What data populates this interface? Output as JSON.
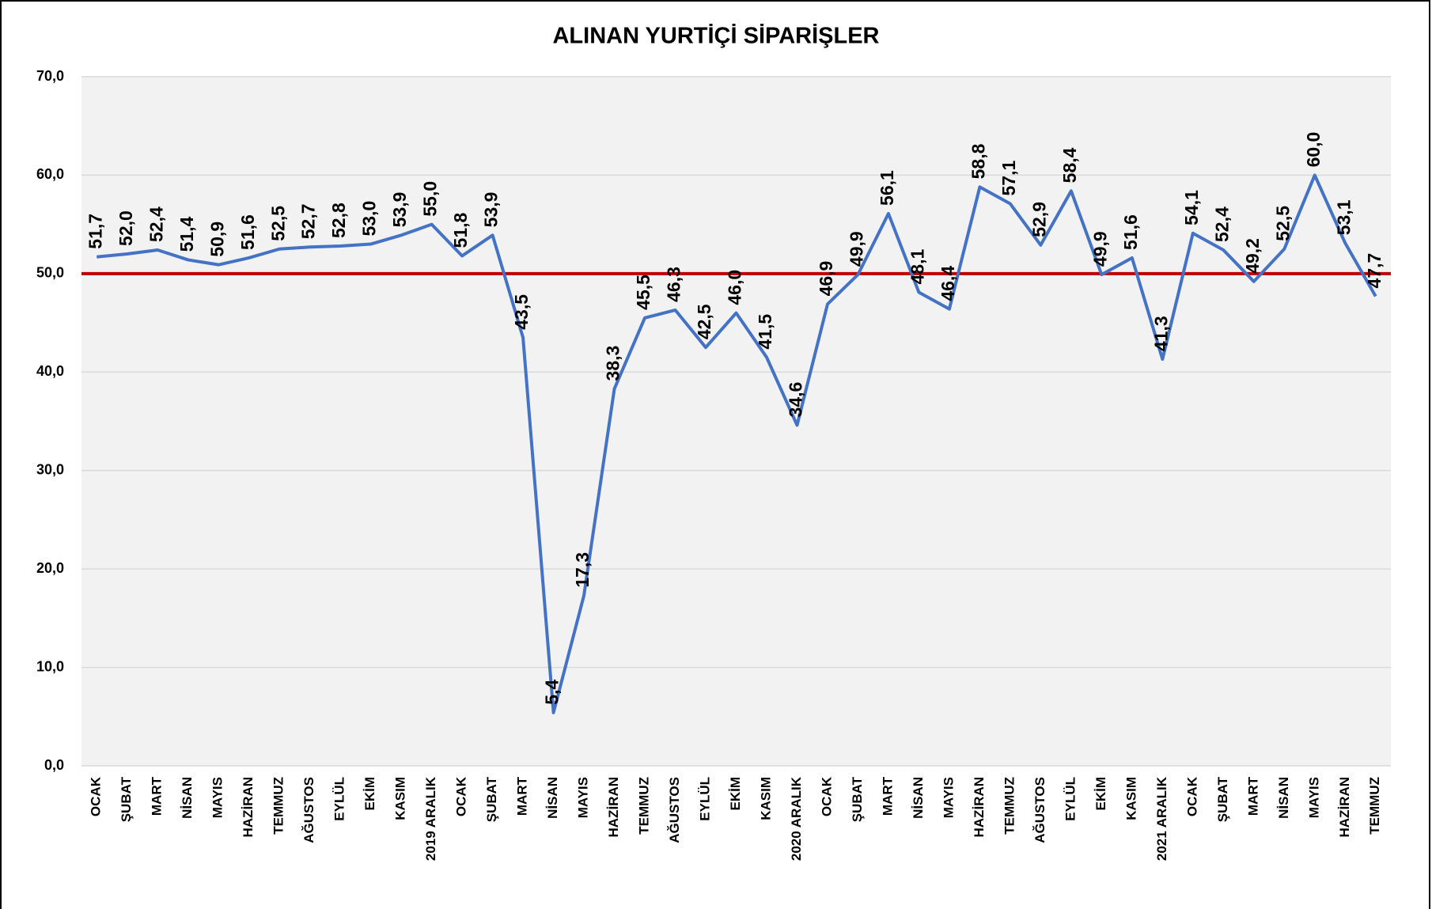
{
  "chart_data": {
    "type": "line",
    "title": "ALINAN YURTİÇİ SİPARİŞLER",
    "categories": [
      "OCAK",
      "ŞUBAT",
      "MART",
      "NİSAN",
      "MAYIS",
      "HAZİRAN",
      "TEMMUZ",
      "AĞUSTOS",
      "EYLÜL",
      "EKİM",
      "KASIM",
      "2019 ARALIK",
      "OCAK",
      "ŞUBAT",
      "MART",
      "NİSAN",
      "MAYIS",
      "HAZİRAN",
      "TEMMUZ",
      "AĞUSTOS",
      "EYLÜL",
      "EKİM",
      "KASIM",
      "2020 ARALIK",
      "OCAK",
      "ŞUBAT",
      "MART",
      "NİSAN",
      "MAYIS",
      "HAZİRAN",
      "TEMMUZ",
      "AĞUSTOS",
      "EYLÜL",
      "EKİM",
      "KASIM",
      "2021 ARALIK",
      "OCAK",
      "ŞUBAT",
      "MART",
      "NİSAN",
      "MAYIS",
      "HAZİRAN",
      "TEMMUZ"
    ],
    "values": [
      51.7,
      52.0,
      52.4,
      51.4,
      50.9,
      51.6,
      52.5,
      52.7,
      52.8,
      53.0,
      53.9,
      55.0,
      51.8,
      53.9,
      43.5,
      5.4,
      17.3,
      38.3,
      45.5,
      46.3,
      42.5,
      46.0,
      41.5,
      34.6,
      46.9,
      49.9,
      56.1,
      48.1,
      46.4,
      58.8,
      57.1,
      52.9,
      58.4,
      49.9,
      51.6,
      41.3,
      54.1,
      52.4,
      49.2,
      52.5,
      60.0,
      53.1,
      47.7
    ],
    "value_labels": [
      "51,7",
      "52,0",
      "52,4",
      "51,4",
      "50,9",
      "51,6",
      "52,5",
      "52,7",
      "52,8",
      "53,0",
      "53,9",
      "55,0",
      "51,8",
      "53,9",
      "43,5",
      "5,4",
      "17,3",
      "38,3",
      "45,5",
      "46,3",
      "42,5",
      "46,0",
      "41,5",
      "34,6",
      "46,9",
      "49,9",
      "56,1",
      "48,1",
      "46,4",
      "58,8",
      "57,1",
      "52,9",
      "58,4",
      "49,9",
      "51,6",
      "41,3",
      "54,1",
      "52,4",
      "49,2",
      "52,5",
      "60,0",
      "53,1",
      "47,7"
    ],
    "color": "#4472c4",
    "ylim": [
      0,
      70
    ],
    "yticks": [
      {
        "value": 0,
        "label": "0,0"
      },
      {
        "value": 10,
        "label": "10,0"
      },
      {
        "value": 20,
        "label": "20,0"
      },
      {
        "value": 30,
        "label": "30,0"
      },
      {
        "value": 40,
        "label": "40,0"
      },
      {
        "value": 50,
        "label": "50,0"
      },
      {
        "value": 60,
        "label": "60,0"
      },
      {
        "value": 70,
        "label": "70,0"
      }
    ],
    "grid": true,
    "reference_line": {
      "value": 50,
      "color": "#c00000"
    }
  }
}
